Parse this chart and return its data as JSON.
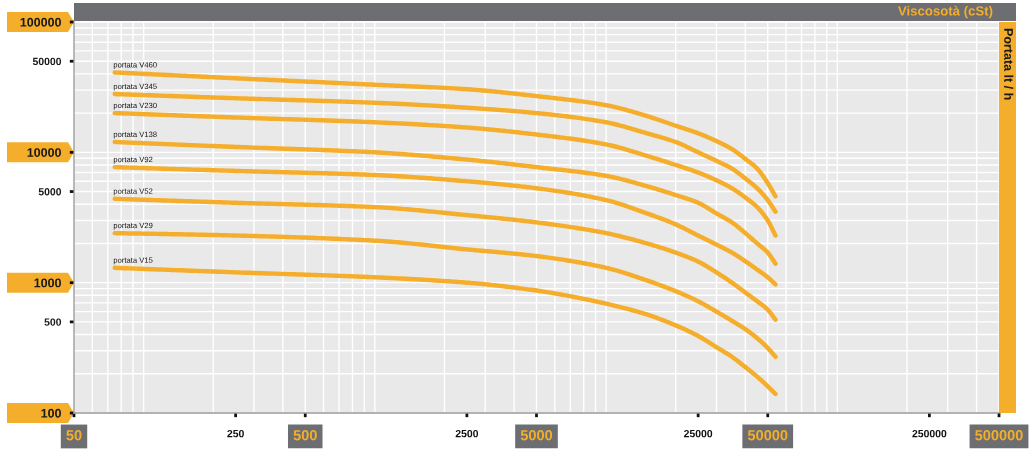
{
  "chart_data": {
    "type": "line",
    "xlabel": "Viscosotà (cSt)",
    "ylabel": "Portata lt / h",
    "log": "xy",
    "xlim": [
      50,
      500000
    ],
    "ylim": [
      100,
      100000
    ],
    "xticks": [
      50,
      250,
      500,
      2500,
      5000,
      25000,
      50000,
      250000,
      500000
    ],
    "yticks": [
      100,
      500,
      1000,
      5000,
      10000,
      50000,
      100000
    ],
    "grid": true,
    "line_style": "solid",
    "x": [
      75,
      250,
      1000,
      2500,
      5000,
      10000,
      15000,
      20000,
      25000,
      30000,
      35000,
      40000,
      45000,
      50000,
      54000
    ],
    "series": [
      {
        "name": "portata V460",
        "color": "#f5ad2c",
        "values": [
          41000,
          37000,
          33000,
          30500,
          27000,
          23000,
          19000,
          16000,
          14000,
          12200,
          10600,
          8900,
          7500,
          5800,
          4600
        ]
      },
      {
        "name": "portata V345",
        "color": "#f5ad2c",
        "values": [
          28000,
          26000,
          24000,
          22000,
          20000,
          17000,
          14000,
          12000,
          10000,
          8600,
          7500,
          6300,
          5300,
          4300,
          3500
        ]
      },
      {
        "name": "portata V230",
        "color": "#f5ad2c",
        "values": [
          20000,
          18500,
          17000,
          15500,
          13700,
          11500,
          9400,
          8000,
          7000,
          6100,
          5300,
          4500,
          3800,
          3000,
          2300
        ]
      },
      {
        "name": "portata V138",
        "color": "#f5ad2c",
        "values": [
          12000,
          11000,
          10000,
          8800,
          7700,
          6600,
          5500,
          4700,
          4100,
          3400,
          2900,
          2400,
          2000,
          1700,
          1400
        ]
      },
      {
        "name": "portata V92",
        "color": "#f5ad2c",
        "values": [
          7700,
          7200,
          6700,
          6000,
          5300,
          4300,
          3400,
          2800,
          2300,
          1960,
          1700,
          1460,
          1260,
          1100,
          970
        ]
      },
      {
        "name": "portata V52",
        "color": "#f5ad2c",
        "values": [
          4400,
          4100,
          3800,
          3300,
          2900,
          2400,
          2000,
          1700,
          1450,
          1200,
          1000,
          840,
          720,
          620,
          520
        ]
      },
      {
        "name": "portata V29",
        "color": "#f5ad2c",
        "values": [
          2400,
          2300,
          2100,
          1800,
          1600,
          1300,
          1040,
          860,
          720,
          600,
          510,
          440,
          375,
          315,
          270
        ]
      },
      {
        "name": "portata V15",
        "color": "#f5ad2c",
        "values": [
          1300,
          1200,
          1100,
          1000,
          870,
          690,
          570,
          470,
          390,
          320,
          270,
          225,
          190,
          160,
          140
        ]
      }
    ]
  }
}
